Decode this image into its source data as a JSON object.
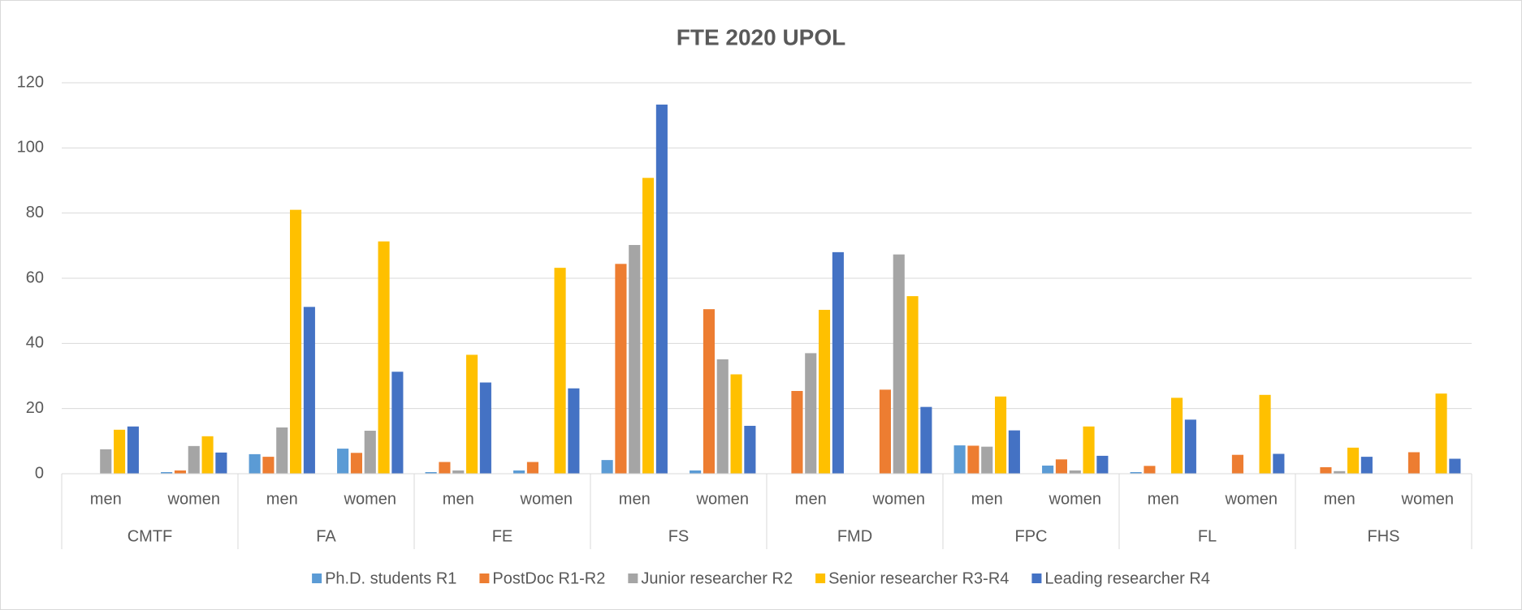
{
  "chart_data": {
    "type": "bar",
    "title": "FTE 2020 UPOL",
    "categories": [
      "men",
      "women",
      "men",
      "women",
      "men",
      "women",
      "men",
      "women",
      "men",
      "women",
      "men",
      "women",
      "men",
      "women",
      "men",
      "women"
    ],
    "groups": [
      "CMTF",
      "FA",
      "FE",
      "FS",
      "FMD",
      "FPC",
      "FL",
      "FHS"
    ],
    "series": [
      {
        "name": "Ph.D. students R1",
        "color": "#5b9bd5",
        "values": [
          0,
          0.5,
          6,
          7.7,
          0.5,
          1,
          4.2,
          1,
          0,
          0,
          8.7,
          2.5,
          0.5,
          0,
          0,
          0
        ]
      },
      {
        "name": "PostDoc R1-R2",
        "color": "#ed7d31",
        "values": [
          0,
          1,
          5.2,
          6.4,
          3.6,
          3.6,
          64.4,
          50.5,
          25.4,
          25.8,
          8.6,
          4.4,
          2.4,
          5.8,
          2,
          6.6
        ]
      },
      {
        "name": "Junior researcher R2",
        "color": "#a5a5a5",
        "values": [
          7.5,
          8.5,
          14.2,
          13.2,
          1,
          0,
          70.2,
          35.1,
          37,
          67.3,
          8.3,
          1,
          0,
          0,
          0.8,
          0
        ]
      },
      {
        "name": "Senior researcher R3-R4",
        "color": "#ffc000",
        "values": [
          13.5,
          11.5,
          81,
          71.3,
          36.5,
          63.2,
          90.8,
          30.5,
          50.3,
          54.5,
          23.7,
          14.5,
          23.3,
          24.2,
          8,
          24.6
        ]
      },
      {
        "name": "Leading researcher R4",
        "color": "#4472c4",
        "values": [
          14.5,
          6.5,
          51.2,
          31.3,
          28,
          26.2,
          113.3,
          14.7,
          68,
          20.5,
          13.3,
          5.5,
          16.6,
          6.1,
          5.2,
          4.6
        ]
      }
    ],
    "ylim": [
      0,
      120
    ],
    "yticks": [
      0,
      20,
      40,
      60,
      80,
      100,
      120
    ],
    "grid": true,
    "legend": "bottom"
  }
}
